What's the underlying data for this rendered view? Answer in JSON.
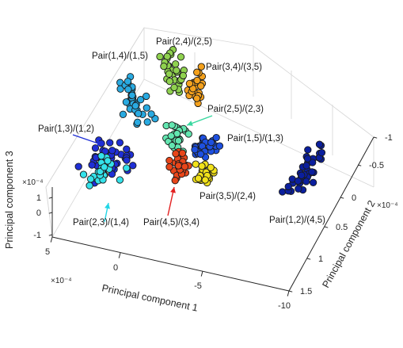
{
  "chart_data": {
    "type": "scatter",
    "projection": "3d",
    "axes": {
      "x": {
        "label": "Principal component 1",
        "ticks": [
          "5",
          "0",
          "-5",
          "-10"
        ],
        "multiplier": "×10⁻⁴",
        "range": [
          5,
          -10
        ]
      },
      "y": {
        "label": "Principal component 2",
        "ticks": [
          "-1",
          "-0.5",
          "0",
          "0.5",
          "1",
          "1.5"
        ],
        "multiplier": "×10⁻⁴",
        "range": [
          -1,
          1.5
        ]
      },
      "z": {
        "label": "Principal component 3",
        "ticks": [
          "1",
          "0",
          "-1"
        ],
        "multiplier": "×10⁻⁴",
        "range": [
          -1,
          1
        ]
      }
    },
    "grid": true,
    "groups": [
      {
        "label": "Pair(1,4)/(1,5)",
        "color": "#29aae1",
        "n": 38
      },
      {
        "label": "Pair(2,4)/(2,5)",
        "color": "#8fd14f",
        "n": 32
      },
      {
        "label": "Pair(3,4)/(3,5)",
        "color": "#f4a11d",
        "n": 26
      },
      {
        "label": "Pair(2,5)/(2,3)",
        "color": "#62e6b0",
        "n": 26
      },
      {
        "label": "Pair(1,3)/(1,2)",
        "color": "#1f2fd6",
        "n": 42
      },
      {
        "label": "Pair(1,5)/(1,3)",
        "color": "#1e50e0",
        "n": 32
      },
      {
        "label": "Pair(2,3)/(1,4)",
        "color": "#34e2ea",
        "n": 26
      },
      {
        "label": "Pair(4,5)/(3,4)",
        "color": "#e8461a",
        "n": 28
      },
      {
        "label": "Pair(3,5)/(2,4)",
        "color": "#f2e21a",
        "n": 26
      },
      {
        "label": "Pair(1,2)/(4,5)",
        "color": "#0b1f9e",
        "n": 42
      }
    ],
    "arrows": [
      {
        "group": "Pair(1,3)/(1,2)",
        "color": "#1f2fd6"
      },
      {
        "group": "Pair(2,5)/(2,3)",
        "color": "#3ad8a0"
      },
      {
        "group": "Pair(2,3)/(1,4)",
        "color": "#22d6e6"
      },
      {
        "group": "Pair(4,5)/(3,4)",
        "color": "#e32020"
      }
    ]
  }
}
